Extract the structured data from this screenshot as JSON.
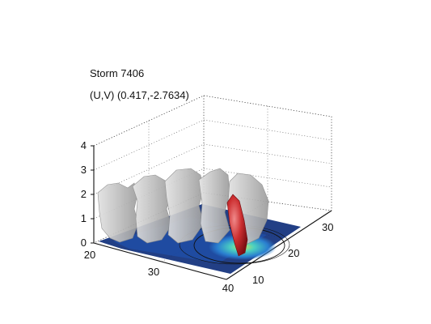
{
  "chart_data": {
    "type": "3d-surface",
    "title": "Storm 7406",
    "subtitle": "(U,V) (0.417,-2.7634)",
    "axes": {
      "x": {
        "ticks": [
          20,
          30,
          40
        ],
        "range": [
          20,
          40
        ]
      },
      "y": {
        "ticks": [
          10,
          20,
          30
        ],
        "range": [
          5,
          35
        ]
      },
      "z": {
        "ticks": [
          0,
          1,
          2,
          3,
          4
        ],
        "range": [
          0,
          4
        ]
      }
    },
    "grid": true,
    "uv": [
      0.417,
      -2.7634
    ],
    "colors": {
      "isosurface": "#c8c8c8",
      "core": "#c0292b",
      "base_dark": "#0a2a78",
      "base_mid": "#3a8fd0",
      "base_light": "#7ad8c0"
    }
  }
}
